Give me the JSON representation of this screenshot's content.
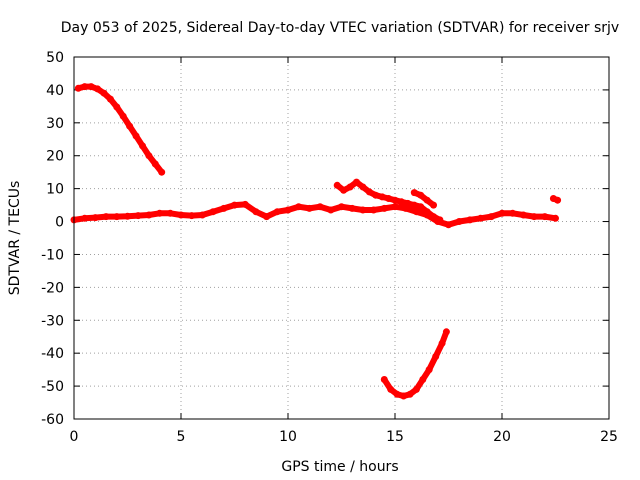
{
  "chart_data": {
    "type": "scatter",
    "title": "Day 053 of 2025, Sidereal Day-to-day VTEC variation (SDTVAR) for receiver srjv",
    "xlabel": "GPS time / hours",
    "ylabel": "SDTVAR / TECUs",
    "xlim": [
      0,
      25
    ],
    "ylim": [
      -60,
      50
    ],
    "xticks": [
      0,
      5,
      10,
      15,
      20,
      25
    ],
    "yticks": [
      -60,
      -50,
      -40,
      -30,
      -20,
      -10,
      0,
      10,
      20,
      30,
      40,
      50
    ],
    "grid": true,
    "color": "#ff0000",
    "series": [
      {
        "name": "arc-decreasing-early",
        "x": [
          0.2,
          0.5,
          0.8,
          1.1,
          1.4,
          1.7,
          2.0,
          2.3,
          2.6,
          2.9,
          3.2,
          3.5,
          3.8,
          4.1
        ],
        "y": [
          40.5,
          41.0,
          41.0,
          40.3,
          39.0,
          37.2,
          34.8,
          32.0,
          29.0,
          26.0,
          23.0,
          20.0,
          17.5,
          15.0
        ]
      },
      {
        "name": "baseline-main",
        "x": [
          0,
          0.5,
          1,
          1.5,
          2,
          2.5,
          3,
          3.5,
          4,
          4.5,
          5,
          5.5,
          6,
          6.5,
          7,
          7.5,
          8,
          8.5,
          9,
          9.5,
          10,
          10.5,
          11,
          11.5,
          12,
          12.5,
          13,
          13.5,
          14,
          14.5,
          15,
          15.5,
          16,
          16.5,
          17,
          17.5,
          18,
          18.5,
          19,
          19.5,
          20,
          20.5,
          21,
          21.5,
          22,
          22.5
        ],
        "y": [
          0.5,
          1.0,
          1.2,
          1.5,
          1.5,
          1.6,
          1.8,
          2.0,
          2.5,
          2.5,
          2.0,
          1.8,
          2.0,
          3.0,
          4.0,
          5.0,
          5.2,
          3.0,
          1.5,
          3.0,
          3.5,
          4.5,
          4.0,
          4.5,
          3.5,
          4.5,
          4.0,
          3.5,
          3.5,
          4.0,
          4.5,
          4.0,
          3.0,
          2.0,
          0.0,
          -1.0,
          0.0,
          0.5,
          1.0,
          1.5,
          2.5,
          2.5,
          2.0,
          1.5,
          1.5,
          1.0
        ]
      },
      {
        "name": "upper-branch",
        "x": [
          12.3,
          12.6,
          12.9,
          13.2,
          13.5,
          13.8,
          14.1,
          14.4,
          14.7,
          15.0,
          15.3,
          15.6,
          15.9,
          16.2,
          16.5,
          16.8,
          17.1
        ],
        "y": [
          11.0,
          9.5,
          10.5,
          12.0,
          10.5,
          9.0,
          8.0,
          7.5,
          7.0,
          6.5,
          6.0,
          5.5,
          5.0,
          4.5,
          3.0,
          1.5,
          0.5
        ]
      },
      {
        "name": "short-segment-16h",
        "x": [
          15.9,
          16.2,
          16.5,
          16.8
        ],
        "y": [
          8.8,
          8.0,
          6.5,
          5.0
        ]
      },
      {
        "name": "arc-u-shape",
        "x": [
          14.5,
          14.8,
          15.1,
          15.4,
          15.7,
          16.0,
          16.3,
          16.6,
          16.9,
          17.2,
          17.4
        ],
        "y": [
          -48.0,
          -51.0,
          -52.5,
          -53.0,
          -52.5,
          -51.0,
          -48.0,
          -45.0,
          -41.0,
          -37.0,
          -33.5
        ]
      },
      {
        "name": "short-segment-22h",
        "x": [
          22.4,
          22.6
        ],
        "y": [
          7.0,
          6.5
        ]
      }
    ]
  }
}
